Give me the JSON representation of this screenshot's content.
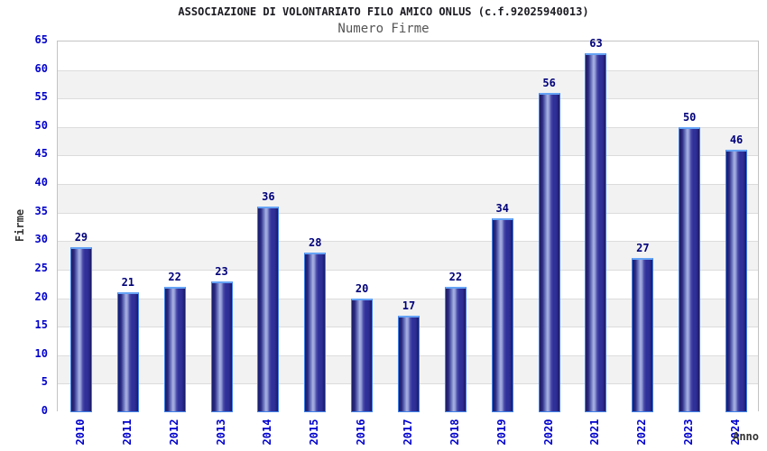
{
  "header": {
    "title": "ASSOCIAZIONE DI VOLONTARIATO FILO AMICO ONLUS (c.f.92025940013)",
    "subtitle": "Numero Firme"
  },
  "chart_data": {
    "type": "bar",
    "title": "ASSOCIAZIONE DI VOLONTARIATO FILO AMICO ONLUS (c.f.92025940013)",
    "subtitle": "Numero Firme",
    "categories": [
      "2010",
      "2011",
      "2012",
      "2013",
      "2014",
      "2015",
      "2016",
      "2017",
      "2018",
      "2019",
      "2020",
      "2021",
      "2022",
      "2023",
      "2024"
    ],
    "values": [
      29,
      21,
      22,
      23,
      36,
      28,
      20,
      17,
      22,
      34,
      56,
      63,
      27,
      50,
      46
    ],
    "xlabel": "Anno",
    "ylabel": "Firme",
    "ylim": [
      0,
      65
    ],
    "ytick_step": 5,
    "grid": true,
    "legend": "none",
    "colors": {
      "tick_label": "#0000cd",
      "value_label": "#00007b",
      "bar_edge": "#4080e8",
      "bar_dark": "#17175e",
      "bar_highlight": "#aab2e2",
      "band": "#f2f2f2",
      "gridline": "#dcdcdc",
      "plot_border": "#c3c3c3",
      "axis_label": "#333333",
      "subtitle": "#555555",
      "title": "#1b1b22"
    }
  }
}
